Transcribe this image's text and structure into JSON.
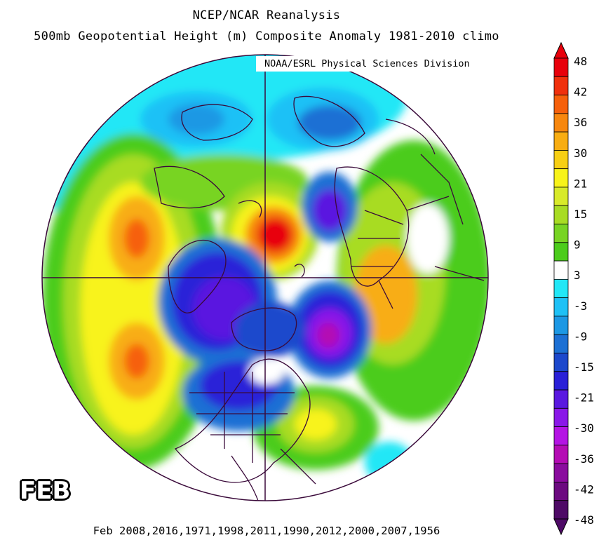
{
  "title_line1": "NCEP/NCAR Reanalysis",
  "title_line2": "500mb Geopotential Height (m) Composite Anomaly 1981-2010 climo",
  "credit": "NOAA/ESRL Physical Sciences Division",
  "month": "FEB",
  "years_caption": "Feb 2008,2016,1971,1998,2011,1990,2012,2000,2007,1956",
  "colorbar": {
    "labels": [
      "48",
      "42",
      "36",
      "30",
      "21",
      "15",
      "9",
      "3",
      "-3",
      "-9",
      "-15",
      "-21",
      "-30",
      "-36",
      "-42",
      "-48"
    ],
    "colors": [
      "#e8000b",
      "#f0300c",
      "#f6600b",
      "#f7870e",
      "#f8ad12",
      "#f7cf14",
      "#f8f31a",
      "#d8ea2a",
      "#a8dc24",
      "#78d424",
      "#4ccc1c",
      "#ffffff",
      "#22e7f6",
      "#1ec1f6",
      "#1c98e4",
      "#1c70d4",
      "#1c48cc",
      "#2a20d8",
      "#5a18e0",
      "#8a18e8",
      "#b414e4",
      "#b40cb4",
      "#8a0c9e",
      "#6c0a80",
      "#4e0a66"
    ]
  },
  "anomaly_centers": [
    {
      "name": "polar-high",
      "sign": "positive",
      "value": 48
    },
    {
      "name": "siberian-low",
      "sign": "negative",
      "value": -36
    },
    {
      "name": "canadian-low",
      "sign": "negative",
      "value": -30
    },
    {
      "name": "north-pacific-high",
      "sign": "positive",
      "value": 36
    },
    {
      "name": "subtropical-pacific-high",
      "sign": "positive",
      "value": 36
    },
    {
      "name": "europe-high",
      "sign": "positive",
      "value": 21
    },
    {
      "name": "atlantic-high",
      "sign": "positive",
      "value": 21
    }
  ]
}
